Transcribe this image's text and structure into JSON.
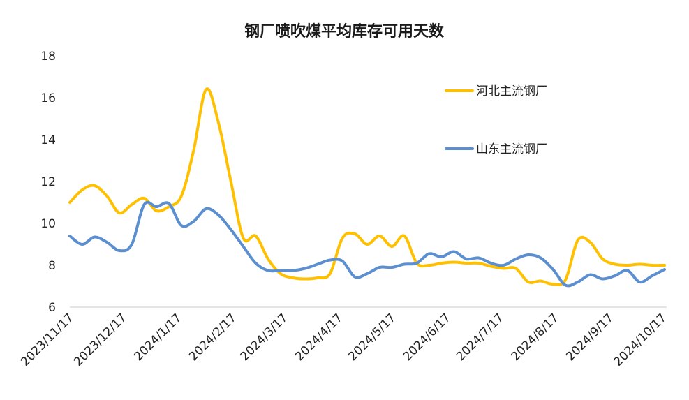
{
  "chart_data": {
    "type": "line",
    "title": "钢厂喷吹煤平均库存可用天数",
    "ylim": [
      6,
      18
    ],
    "yticks": [
      "6",
      "8",
      "10",
      "12",
      "14",
      "16",
      "18"
    ],
    "xticks": [
      "2023/11/17",
      "2023/12/17",
      "2024/1/17",
      "2024/2/17",
      "2024/3/17",
      "2024/4/17",
      "2024/5/17",
      "2024/6/17",
      "2024/7/17",
      "2024/8/17",
      "2024/9/17",
      "2024/10/17"
    ],
    "x": [
      "2023/11/17",
      "2023/11/24",
      "2023/12/1",
      "2023/12/8",
      "2023/12/15",
      "2023/12/22",
      "2023/12/29",
      "2024/1/5",
      "2024/1/12",
      "2024/1/19",
      "2024/1/26",
      "2024/2/2",
      "2024/2/9",
      "2024/2/16",
      "2024/2/23",
      "2024/3/1",
      "2024/3/8",
      "2024/3/15",
      "2024/3/22",
      "2024/3/29",
      "2024/4/5",
      "2024/4/12",
      "2024/4/19",
      "2024/4/26",
      "2024/5/3",
      "2024/5/10",
      "2024/5/17",
      "2024/5/24",
      "2024/5/31",
      "2024/6/7",
      "2024/6/14",
      "2024/6/21",
      "2024/6/28",
      "2024/7/5",
      "2024/7/12",
      "2024/7/19",
      "2024/7/26",
      "2024/8/2",
      "2024/8/9",
      "2024/8/16",
      "2024/8/23",
      "2024/8/30",
      "2024/9/6",
      "2024/9/13",
      "2024/9/20",
      "2024/9/27",
      "2024/10/4",
      "2024/10/11",
      "2024/10/18"
    ],
    "legend_position": "right",
    "grid": false,
    "series": [
      {
        "name": "河北主流钢厂",
        "color": "#FFC000",
        "values": [
          11.0,
          11.6,
          11.8,
          11.3,
          10.5,
          10.9,
          11.2,
          10.6,
          10.8,
          11.3,
          13.5,
          16.4,
          14.8,
          12.0,
          9.3,
          9.4,
          8.3,
          7.6,
          7.4,
          7.35,
          7.4,
          7.6,
          9.3,
          9.5,
          9.0,
          9.4,
          8.9,
          9.4,
          8.1,
          8.0,
          8.1,
          8.15,
          8.1,
          8.1,
          7.95,
          7.85,
          7.85,
          7.2,
          7.25,
          7.1,
          7.3,
          9.2,
          9.1,
          8.3,
          8.05,
          8.0,
          8.05,
          8.0,
          8.0
        ]
      },
      {
        "name": "山东主流钢厂",
        "color": "#5B8FD0",
        "values": [
          9.4,
          9.0,
          9.35,
          9.1,
          8.7,
          9.0,
          10.9,
          10.8,
          10.95,
          9.9,
          10.1,
          10.7,
          10.4,
          9.7,
          8.9,
          8.1,
          7.75,
          7.75,
          7.75,
          7.85,
          8.05,
          8.25,
          8.2,
          7.45,
          7.6,
          7.9,
          7.9,
          8.05,
          8.1,
          8.55,
          8.4,
          8.65,
          8.3,
          8.35,
          8.1,
          8.0,
          8.3,
          8.5,
          8.35,
          7.8,
          7.05,
          7.2,
          7.55,
          7.35,
          7.5,
          7.75,
          7.2,
          7.5,
          7.8
        ]
      }
    ]
  }
}
